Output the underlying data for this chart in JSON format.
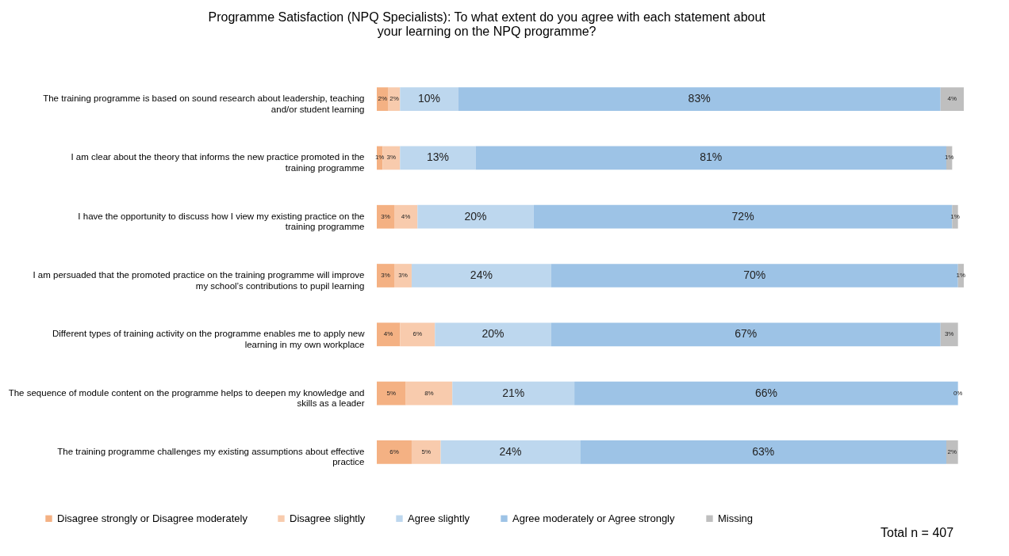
{
  "chart_data": {
    "type": "bar",
    "orientation": "horizontal",
    "stacked": true,
    "title": "Programme Satisfaction (NPQ Specialists): To what extent do you agree with each statement about your learning on the NPQ programme?",
    "categories": [
      "The training programme is based on sound research about leadership, teaching and/or student learning",
      "I am clear about the theory that informs the new practice promoted in the training programme",
      "I have the opportunity to discuss how I view my existing practice on the training programme",
      "I am persuaded that the promoted practice on the training programme will improve my school’s contributions to pupil learning",
      "Different types of training activity on the programme enables me to apply new learning in my own workplace",
      "The sequence of module content on the programme helps to deepen my knowledge and skills as a leader",
      "The training programme challenges my existing assumptions about effective practice"
    ],
    "series": [
      {
        "name": "Disagree strongly or Disagree moderately",
        "color": "#f4b183",
        "values": [
          2,
          1,
          3,
          3,
          4,
          5,
          6
        ],
        "value_labels": [
          "2%",
          "1%",
          "3%",
          "3%",
          "4%",
          "5%",
          "6%"
        ]
      },
      {
        "name": "Disagree slightly",
        "color": "#f8cbad",
        "values": [
          2,
          3,
          4,
          3,
          6,
          8,
          5
        ],
        "value_labels": [
          "2%",
          "3%",
          "4%",
          "3%",
          "6%",
          "8%",
          "5%"
        ]
      },
      {
        "name": "Agree slightly",
        "color": "#bdd7ee",
        "values": [
          10,
          13,
          20,
          24,
          20,
          21,
          24
        ],
        "value_labels": [
          "10%",
          "13%",
          "20%",
          "24%",
          "20%",
          "21%",
          "24%"
        ]
      },
      {
        "name": "Agree moderately or Agree strongly",
        "color": "#9dc3e6",
        "values": [
          83,
          81,
          72,
          70,
          67,
          66,
          63
        ],
        "value_labels": [
          "83%",
          "81%",
          "72%",
          "70%",
          "67%",
          "66%",
          "63%"
        ]
      },
      {
        "name": "Missing",
        "color": "#bfbfbf",
        "values": [
          4,
          1,
          1,
          1,
          3,
          0,
          2
        ],
        "value_labels": [
          "4%",
          "1%",
          "1%",
          "1%",
          "3%",
          "0%",
          "2%"
        ]
      }
    ],
    "xlim": [
      0,
      101
    ],
    "tick_labels": "y",
    "legend": "bottom",
    "annotations": [
      "Total n = 407"
    ]
  }
}
